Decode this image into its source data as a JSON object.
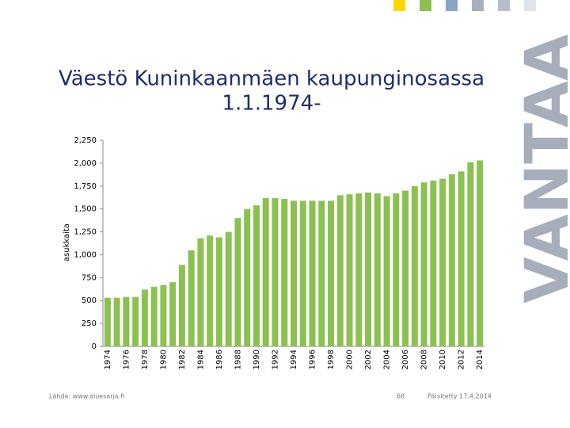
{
  "chart_data": {
    "type": "bar",
    "title": [
      "Väestö Kuninkaanmäen kaupunginosassa",
      "1.1.1974-"
    ],
    "y_label": "asukkaita",
    "categories": [
      "1974",
      null,
      "1976",
      null,
      "1978",
      null,
      "1980",
      null,
      "1982",
      null,
      "1984",
      null,
      "1986",
      null,
      "1988",
      null,
      "1990",
      null,
      "1992",
      null,
      "1994",
      null,
      "1996",
      null,
      "1998",
      null,
      "2000",
      null,
      "2002",
      null,
      "2004",
      null,
      "2006",
      null,
      "2008",
      null,
      "2010",
      null,
      "2012",
      null,
      "2014"
    ],
    "values": [
      530,
      530,
      540,
      540,
      620,
      650,
      670,
      700,
      890,
      1050,
      1180,
      1210,
      1190,
      1250,
      1400,
      1500,
      1540,
      1620,
      1620,
      1610,
      1590,
      1590,
      1590,
      1590,
      1590,
      1650,
      1660,
      1670,
      1680,
      1670,
      1640,
      1670,
      1700,
      1750,
      1790,
      1810,
      1830,
      1880,
      1910,
      2010,
      2030
    ],
    "color": "#8cc152",
    "ylim": [
      0,
      2250
    ],
    "yticks": [
      0,
      250,
      500,
      750,
      {
        "value": 1000,
        "label": "1,000"
      },
      {
        "value": 1250,
        "label": "1,250"
      },
      {
        "value": 1500,
        "label": "1,500"
      },
      {
        "value": 1750,
        "label": "1,750"
      },
      {
        "value": 2000,
        "label": "2,000"
      },
      {
        "value": 2250,
        "label": "2,250"
      }
    ],
    "grid": false
  },
  "logo": "VANTAA",
  "footer": {
    "source": "Lähde: www.aluesarja.fi",
    "page": "68",
    "updated": "Päivitetty 17.4.2014"
  }
}
